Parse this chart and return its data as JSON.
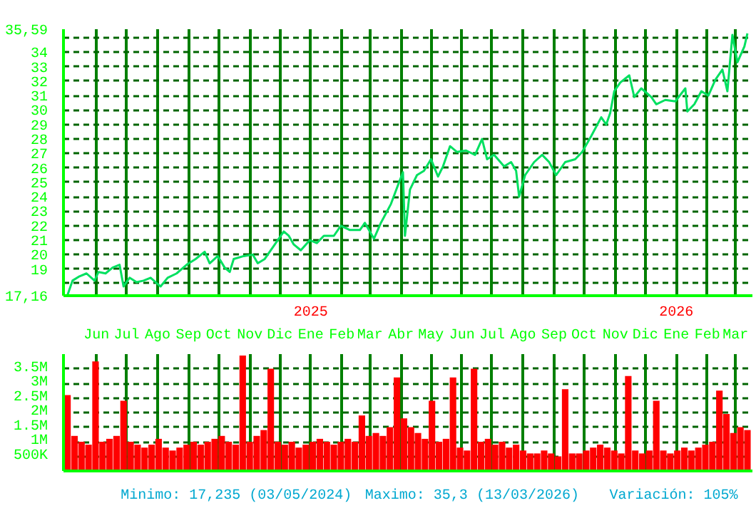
{
  "chart_data": [
    {
      "type": "line",
      "xlim": [
        "2024-04-29",
        "2026-03-18"
      ],
      "ylim": [
        17.16,
        35.59
      ],
      "yticks": [
        {
          "value": 17.16,
          "label": "17,16"
        },
        {
          "value": 18,
          "label": null
        },
        19,
        20,
        21,
        22,
        23,
        24,
        25,
        26,
        27,
        28,
        29,
        30,
        31,
        32,
        33,
        34,
        {
          "value": 35,
          "label": null
        },
        {
          "value": 35.59,
          "label": "35,59"
        }
      ],
      "xticks": [
        {
          "value": "2024-06-01",
          "label": "Jun"
        },
        {
          "value": "2024-07-01",
          "label": "Jul"
        },
        {
          "value": "2024-08-01",
          "label": "Ago"
        },
        {
          "value": "2024-09-01",
          "label": "Sep"
        },
        {
          "value": "2024-10-01",
          "label": "Oct"
        },
        {
          "value": "2024-11-01",
          "label": "Nov"
        },
        {
          "value": "2024-12-01",
          "label": "Dic"
        },
        {
          "value": "2025-01-01",
          "label": "Ene"
        },
        {
          "value": "2025-02-01",
          "label": "Feb"
        },
        {
          "value": "2025-03-01",
          "label": "Mar"
        },
        {
          "value": "2025-04-01",
          "label": "Abr"
        },
        {
          "value": "2025-05-01",
          "label": "May"
        },
        {
          "value": "2025-06-01",
          "label": "Jun"
        },
        {
          "value": "2025-07-01",
          "label": "Jul"
        },
        {
          "value": "2025-08-01",
          "label": "Ago"
        },
        {
          "value": "2025-09-01",
          "label": "Sep"
        },
        {
          "value": "2025-10-01",
          "label": "Oct"
        },
        {
          "value": "2025-11-01",
          "label": "Nov"
        },
        {
          "value": "2025-12-01",
          "label": "Dic"
        },
        {
          "value": "2026-01-01",
          "label": "Ene"
        },
        {
          "value": "2026-02-01",
          "label": "Feb"
        },
        {
          "value": "2026-03-01",
          "label": "Mar"
        }
      ],
      "grid": true,
      "marker": "none",
      "line_style": "solid",
      "annotations": [
        "2025",
        "2026"
      ],
      "series": [
        {
          "color": "#00e060",
          "x": [
            "2024-05-03",
            "2024-05-08",
            "2024-05-15",
            "2024-05-22",
            "2024-05-30",
            "2024-06-03",
            "2024-06-10",
            "2024-06-17",
            "2024-06-24",
            "2024-06-28",
            "2024-07-04",
            "2024-07-11",
            "2024-07-18",
            "2024-07-25",
            "2024-08-04",
            "2024-08-11",
            "2024-08-20",
            "2024-08-30",
            "2024-09-08",
            "2024-09-17",
            "2024-09-22",
            "2024-09-30",
            "2024-10-07",
            "2024-10-12",
            "2024-10-16",
            "2024-10-26",
            "2024-11-04",
            "2024-11-09",
            "2024-11-16",
            "2024-11-26",
            "2024-12-05",
            "2024-12-10",
            "2024-12-15",
            "2024-12-22",
            "2024-12-31",
            "2025-01-07",
            "2025-01-14",
            "2025-01-24",
            "2025-01-31",
            "2025-02-09",
            "2025-02-19",
            "2025-02-24",
            "2025-03-05",
            "2025-03-12",
            "2025-03-22",
            "2025-03-29",
            "2025-04-03",
            "2025-04-05",
            "2025-04-10",
            "2025-04-17",
            "2025-04-24",
            "2025-05-01",
            "2025-05-08",
            "2025-05-13",
            "2025-05-20",
            "2025-05-27",
            "2025-06-05",
            "2025-06-14",
            "2025-06-21",
            "2025-06-26",
            "2025-07-03",
            "2025-07-13",
            "2025-07-20",
            "2025-07-25",
            "2025-07-28",
            "2025-08-03",
            "2025-08-12",
            "2025-08-20",
            "2025-08-27",
            "2025-09-03",
            "2025-09-12",
            "2025-09-22",
            "2025-09-29",
            "2025-10-08",
            "2025-10-18",
            "2025-10-23",
            "2025-10-27",
            "2025-10-31",
            "2025-11-06",
            "2025-11-15",
            "2025-11-20",
            "2025-11-27",
            "2025-12-07",
            "2025-12-12",
            "2025-12-21",
            "2025-12-31",
            "2026-01-10",
            "2026-01-12",
            "2026-01-19",
            "2026-01-26",
            "2026-02-02",
            "2026-02-09",
            "2026-02-16",
            "2026-02-21",
            "2026-02-26",
            "2026-03-03",
            "2026-03-10",
            "2026-03-13"
          ],
          "values": [
            17.2,
            18.2,
            18.5,
            18.7,
            18.2,
            18.8,
            18.7,
            19.1,
            19.3,
            17.8,
            18.4,
            18.1,
            18.2,
            18.4,
            17.8,
            18.4,
            18.7,
            19.3,
            19.7,
            20.2,
            19.4,
            19.9,
            19.1,
            18.8,
            19.7,
            19.9,
            20.0,
            19.4,
            19.7,
            20.7,
            21.6,
            21.3,
            20.7,
            20.3,
            21.0,
            20.8,
            21.3,
            21.3,
            22.0,
            21.7,
            21.7,
            22.2,
            21.1,
            22.2,
            23.5,
            24.8,
            25.7,
            21.3,
            24.5,
            25.5,
            25.8,
            26.6,
            25.4,
            26.1,
            27.5,
            27.1,
            27.2,
            26.9,
            28.0,
            26.6,
            26.9,
            26.1,
            26.4,
            25.8,
            24.0,
            25.5,
            26.4,
            26.9,
            26.4,
            25.5,
            26.4,
            26.6,
            27.1,
            28.2,
            29.5,
            29.0,
            29.8,
            31.3,
            31.9,
            32.4,
            30.9,
            31.5,
            30.9,
            30.4,
            30.7,
            30.6,
            31.5,
            29.9,
            30.4,
            31.3,
            31.0,
            32.1,
            32.8,
            31.3,
            35.2,
            33.3,
            34.4,
            35.3
          ]
        }
      ]
    },
    {
      "type": "bar",
      "xlim": [
        "2024-04-29",
        "2026-03-18"
      ],
      "ylim": [
        0,
        4000000
      ],
      "yticks": [
        {
          "value": 500000,
          "label": "500K"
        },
        {
          "value": 1000000,
          "label": "1M"
        },
        {
          "value": 1500000,
          "label": "1.5M"
        },
        {
          "value": 2000000,
          "label": "2M"
        },
        {
          "value": 2500000,
          "label": "2.5M"
        },
        {
          "value": 3000000,
          "label": "3M"
        },
        {
          "value": 3500000,
          "label": "3.5M"
        }
      ],
      "xticks": [
        {
          "value": "2024-06-01",
          "label": null
        },
        {
          "value": "2024-07-01",
          "label": null
        },
        {
          "value": "2024-08-01",
          "label": null
        },
        {
          "value": "2024-09-01",
          "label": null
        },
        {
          "value": "2024-10-01",
          "label": null
        },
        {
          "value": "2024-11-01",
          "label": null
        },
        {
          "value": "2024-12-01",
          "label": null
        },
        {
          "value": "2025-01-01",
          "label": null
        },
        {
          "value": "2025-02-01",
          "label": null
        },
        {
          "value": "2025-03-01",
          "label": null
        },
        {
          "value": "2025-04-01",
          "label": null
        },
        {
          "value": "2025-05-01",
          "label": null
        },
        {
          "value": "2025-06-01",
          "label": null
        },
        {
          "value": "2025-07-01",
          "label": null
        },
        {
          "value": "2025-08-01",
          "label": null
        },
        {
          "value": "2025-09-01",
          "label": null
        },
        {
          "value": "2025-10-01",
          "label": null
        },
        {
          "value": "2025-11-01",
          "label": null
        },
        {
          "value": "2025-12-01",
          "label": null
        },
        {
          "value": "2026-01-01",
          "label": null
        },
        {
          "value": "2026-02-01",
          "label": null
        },
        {
          "value": "2026-03-01",
          "label": null
        }
      ],
      "tick_labels": "y",
      "grid": true,
      "annotations": [
        "Minimo: 17,235 (03/05/2024)",
        "Maximo: 35,3 (13/03/2026)",
        "Variación: 105%"
      ],
      "series": [
        {
          "color": "#ff0000",
          "x": [
            "2024-05-03",
            "2024-05-10",
            "2024-05-17",
            "2024-05-24",
            "2024-05-31",
            "2024-06-07",
            "2024-06-14",
            "2024-06-21",
            "2024-06-28",
            "2024-07-05",
            "2024-07-12",
            "2024-07-19",
            "2024-07-26",
            "2024-08-02",
            "2024-08-09",
            "2024-08-16",
            "2024-08-23",
            "2024-08-30",
            "2024-09-06",
            "2024-09-13",
            "2024-09-20",
            "2024-09-27",
            "2024-10-04",
            "2024-10-11",
            "2024-10-18",
            "2024-10-25",
            "2024-11-01",
            "2024-11-08",
            "2024-11-15",
            "2024-11-22",
            "2024-11-29",
            "2024-12-06",
            "2024-12-13",
            "2024-12-20",
            "2024-12-27",
            "2025-01-03",
            "2025-01-10",
            "2025-01-17",
            "2025-01-24",
            "2025-01-31",
            "2025-02-07",
            "2025-02-14",
            "2025-02-21",
            "2025-02-28",
            "2025-03-07",
            "2025-03-14",
            "2025-03-21",
            "2025-03-28",
            "2025-04-04",
            "2025-04-11",
            "2025-04-18",
            "2025-04-25",
            "2025-05-02",
            "2025-05-09",
            "2025-05-16",
            "2025-05-23",
            "2025-05-30",
            "2025-06-06",
            "2025-06-13",
            "2025-06-20",
            "2025-06-27",
            "2025-07-04",
            "2025-07-11",
            "2025-07-18",
            "2025-07-25",
            "2025-08-01",
            "2025-08-08",
            "2025-08-15",
            "2025-08-22",
            "2025-08-29",
            "2025-09-05",
            "2025-09-12",
            "2025-09-19",
            "2025-09-26",
            "2025-10-03",
            "2025-10-10",
            "2025-10-17",
            "2025-10-24",
            "2025-10-31",
            "2025-11-07",
            "2025-11-14",
            "2025-11-21",
            "2025-11-28",
            "2025-12-05",
            "2025-12-12",
            "2025-12-19",
            "2025-12-26",
            "2026-01-02",
            "2026-01-09",
            "2026-01-16",
            "2026-01-23",
            "2026-01-30",
            "2026-02-06",
            "2026-02-13",
            "2026-02-20",
            "2026-02-27",
            "2026-03-06",
            "2026-03-13"
          ],
          "values": [
            2600000,
            1200000,
            1000000,
            900000,
            3750000,
            1000000,
            1100000,
            1200000,
            2400000,
            1000000,
            900000,
            800000,
            900000,
            1100000,
            800000,
            700000,
            800000,
            900000,
            1000000,
            900000,
            1000000,
            1100000,
            1200000,
            1000000,
            900000,
            3950000,
            1000000,
            1200000,
            1400000,
            3500000,
            1000000,
            900000,
            1000000,
            800000,
            900000,
            1000000,
            1100000,
            1000000,
            900000,
            1000000,
            1100000,
            1000000,
            1900000,
            1200000,
            1300000,
            1200000,
            1500000,
            3200000,
            1800000,
            1500000,
            1300000,
            1100000,
            2400000,
            1000000,
            1100000,
            3200000,
            800000,
            700000,
            3500000,
            1000000,
            1100000,
            900000,
            1000000,
            800000,
            900000,
            700000,
            600000,
            600000,
            700000,
            600000,
            500000,
            2800000,
            600000,
            600000,
            700000,
            800000,
            900000,
            800000,
            700000,
            600000,
            3250000,
            700000,
            600000,
            700000,
            2400000,
            700000,
            600000,
            700000,
            800000,
            700000,
            800000,
            900000,
            1000000,
            2750000,
            1950000,
            1300000,
            1500000,
            1400000
          ]
        }
      ]
    }
  ]
}
